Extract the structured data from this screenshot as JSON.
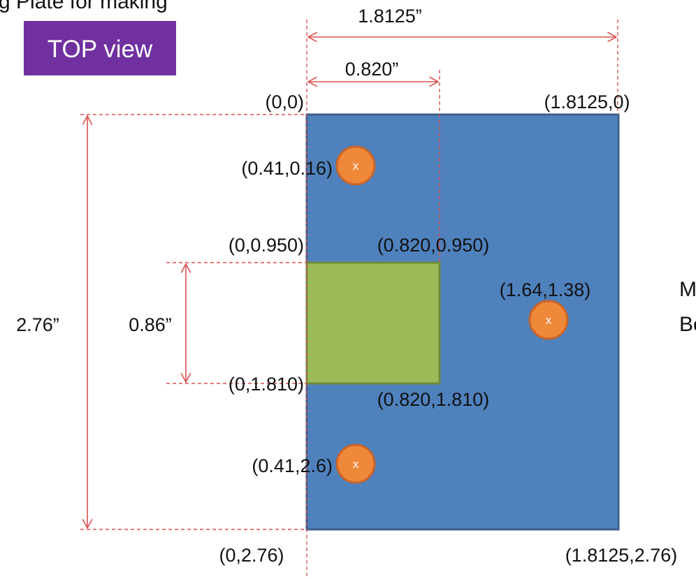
{
  "header": {
    "cut_title": "g Plate for making",
    "view_badge": "TOP view"
  },
  "dimensions": {
    "overall_width": "1.8125”",
    "pocket_width": "0.820”",
    "overall_height": "2.76”",
    "pocket_height": "0.86”"
  },
  "corners": {
    "top_left": "(0,0)",
    "top_right": "(1.8125,0)",
    "bottom_left": "(0,2.76)",
    "bottom_right": "(1.8125,2.76)"
  },
  "pocket_corners": {
    "top_left": "(0,0.950)",
    "top_right": "(0.820,0.950)",
    "bottom_left": "(0,1.810)",
    "bottom_right": "(0.820,1.810)"
  },
  "holes": [
    {
      "label": "(0.41,0.16)",
      "mark": "x"
    },
    {
      "label": "(1.64,1.38)",
      "mark": "x"
    },
    {
      "label": "(0.41,2.6)",
      "mark": "x"
    }
  ],
  "cut_right_text": [
    "M",
    "Bo"
  ],
  "colors": {
    "plate": "#4f81bd",
    "plate_border": "#3a5f8c",
    "pocket": "#9bbb59",
    "pocket_border": "#6e8a3a",
    "hole": "#f0883a",
    "hole_border": "#c8652a",
    "dimension": "#d9534f",
    "badge": "#7030a0"
  }
}
